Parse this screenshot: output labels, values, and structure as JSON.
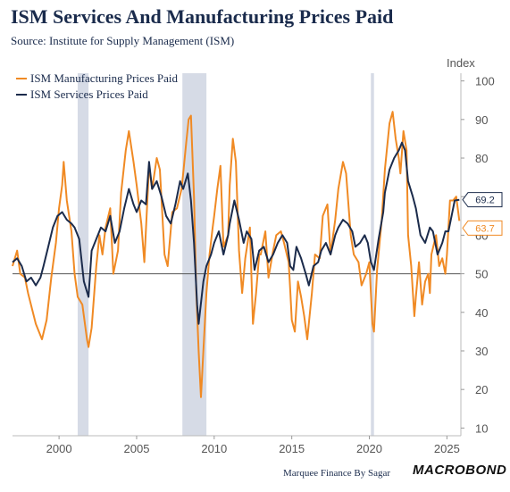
{
  "title": "ISM Services And Manufacturing Prices Paid",
  "subtitle": "Source: Institute for Supply Management (ISM)",
  "footer": "Marquee Finance By Sagar",
  "brand": "MACROBOND",
  "colors": {
    "manufacturing": "#f08a24",
    "services": "#1b2b4b",
    "recession": "#d6dbe6",
    "refline": "#555555"
  },
  "chart_data": {
    "type": "line",
    "title": "ISM Services And Manufacturing Prices Paid",
    "ylabel": "Index",
    "xlim": [
      1997,
      2025.9
    ],
    "ylim": [
      8,
      102
    ],
    "yticks": [
      10,
      20,
      30,
      40,
      50,
      60,
      70,
      80,
      90,
      100
    ],
    "xticks": [
      2000,
      2005,
      2010,
      2015,
      2020,
      2025
    ],
    "reference_line": 50,
    "recessions": [
      [
        2001.2,
        2001.9
      ],
      [
        2007.95,
        2009.5
      ],
      [
        2020.1,
        2020.3
      ]
    ],
    "legend_position": "top-left",
    "series": [
      {
        "name": "ISM Manufacturing Prices Paid",
        "last_value": 63.7,
        "points": [
          [
            1997.0,
            52
          ],
          [
            1997.3,
            56
          ],
          [
            1997.5,
            50
          ],
          [
            1997.8,
            49
          ],
          [
            1998.0,
            45
          ],
          [
            1998.5,
            37
          ],
          [
            1998.9,
            33
          ],
          [
            1999.2,
            38
          ],
          [
            1999.5,
            49
          ],
          [
            1999.8,
            58
          ],
          [
            2000.0,
            67
          ],
          [
            2000.2,
            73
          ],
          [
            2000.3,
            79
          ],
          [
            2000.5,
            69
          ],
          [
            2000.8,
            61
          ],
          [
            2001.0,
            50
          ],
          [
            2001.2,
            44
          ],
          [
            2001.5,
            42
          ],
          [
            2001.8,
            33
          ],
          [
            2001.9,
            31
          ],
          [
            2002.1,
            36
          ],
          [
            2002.4,
            52
          ],
          [
            2002.6,
            60
          ],
          [
            2002.8,
            55
          ],
          [
            2003.0,
            62
          ],
          [
            2003.3,
            67
          ],
          [
            2003.5,
            50
          ],
          [
            2003.8,
            56
          ],
          [
            2004.0,
            71
          ],
          [
            2004.3,
            82
          ],
          [
            2004.5,
            87
          ],
          [
            2004.8,
            79
          ],
          [
            2005.0,
            73
          ],
          [
            2005.3,
            63
          ],
          [
            2005.5,
            53
          ],
          [
            2005.8,
            78
          ],
          [
            2006.0,
            72
          ],
          [
            2006.3,
            80
          ],
          [
            2006.5,
            77
          ],
          [
            2006.8,
            55
          ],
          [
            2007.0,
            52
          ],
          [
            2007.3,
            66
          ],
          [
            2007.6,
            67
          ],
          [
            2007.9,
            72
          ],
          [
            2008.0,
            76
          ],
          [
            2008.2,
            84
          ],
          [
            2008.35,
            90
          ],
          [
            2008.5,
            91
          ],
          [
            2008.7,
            70
          ],
          [
            2008.85,
            45
          ],
          [
            2009.0,
            30
          ],
          [
            2009.15,
            18
          ],
          [
            2009.3,
            30
          ],
          [
            2009.5,
            45
          ],
          [
            2009.7,
            55
          ],
          [
            2009.9,
            62
          ],
          [
            2010.0,
            65
          ],
          [
            2010.2,
            72
          ],
          [
            2010.4,
            78
          ],
          [
            2010.6,
            57
          ],
          [
            2010.9,
            60
          ],
          [
            2011.0,
            73
          ],
          [
            2011.2,
            85
          ],
          [
            2011.4,
            79
          ],
          [
            2011.6,
            56
          ],
          [
            2011.8,
            45
          ],
          [
            2012.0,
            54
          ],
          [
            2012.3,
            62
          ],
          [
            2012.5,
            37
          ],
          [
            2012.7,
            45
          ],
          [
            2012.9,
            55
          ],
          [
            2013.0,
            55
          ],
          [
            2013.3,
            61
          ],
          [
            2013.5,
            49
          ],
          [
            2013.8,
            56
          ],
          [
            2014.0,
            60
          ],
          [
            2014.3,
            61
          ],
          [
            2014.5,
            58
          ],
          [
            2014.8,
            53
          ],
          [
            2014.9,
            46
          ],
          [
            2015.0,
            38
          ],
          [
            2015.2,
            35
          ],
          [
            2015.4,
            48
          ],
          [
            2015.6,
            44
          ],
          [
            2015.8,
            39
          ],
          [
            2016.0,
            33
          ],
          [
            2016.3,
            45
          ],
          [
            2016.5,
            55
          ],
          [
            2016.8,
            54
          ],
          [
            2017.0,
            65
          ],
          [
            2017.3,
            68
          ],
          [
            2017.5,
            55
          ],
          [
            2017.8,
            64
          ],
          [
            2018.0,
            72
          ],
          [
            2018.3,
            79
          ],
          [
            2018.5,
            76
          ],
          [
            2018.8,
            60
          ],
          [
            2019.0,
            55
          ],
          [
            2019.3,
            53
          ],
          [
            2019.5,
            47
          ],
          [
            2019.8,
            50
          ],
          [
            2020.0,
            53
          ],
          [
            2020.2,
            37
          ],
          [
            2020.3,
            35
          ],
          [
            2020.5,
            51
          ],
          [
            2020.8,
            64
          ],
          [
            2021.0,
            77
          ],
          [
            2021.3,
            89
          ],
          [
            2021.5,
            92
          ],
          [
            2021.7,
            85
          ],
          [
            2021.9,
            80
          ],
          [
            2022.0,
            76
          ],
          [
            2022.2,
            87
          ],
          [
            2022.4,
            82
          ],
          [
            2022.5,
            60
          ],
          [
            2022.7,
            52
          ],
          [
            2022.9,
            39
          ],
          [
            2023.0,
            44
          ],
          [
            2023.2,
            53
          ],
          [
            2023.4,
            42
          ],
          [
            2023.6,
            48
          ],
          [
            2023.8,
            50
          ],
          [
            2023.9,
            45
          ],
          [
            2024.0,
            55
          ],
          [
            2024.3,
            60
          ],
          [
            2024.5,
            52
          ],
          [
            2024.7,
            54
          ],
          [
            2024.9,
            50
          ],
          [
            2025.0,
            55
          ],
          [
            2025.2,
            69
          ],
          [
            2025.4,
            69
          ],
          [
            2025.6,
            70
          ],
          [
            2025.8,
            63.7
          ]
        ]
      },
      {
        "name": "ISM Services Prices Paid",
        "last_value": 69.2,
        "points": [
          [
            1997.0,
            53
          ],
          [
            1997.3,
            54
          ],
          [
            1997.6,
            52
          ],
          [
            1997.9,
            48
          ],
          [
            1998.2,
            49
          ],
          [
            1998.5,
            47
          ],
          [
            1998.8,
            49
          ],
          [
            1999.0,
            52
          ],
          [
            1999.3,
            57
          ],
          [
            1999.6,
            62
          ],
          [
            1999.9,
            65
          ],
          [
            2000.2,
            66
          ],
          [
            2000.5,
            64
          ],
          [
            2000.8,
            63
          ],
          [
            2001.0,
            62
          ],
          [
            2001.3,
            59
          ],
          [
            2001.6,
            48
          ],
          [
            2001.9,
            44
          ],
          [
            2002.1,
            56
          ],
          [
            2002.4,
            59
          ],
          [
            2002.7,
            62
          ],
          [
            2003.0,
            61
          ],
          [
            2003.3,
            65
          ],
          [
            2003.6,
            58
          ],
          [
            2003.9,
            61
          ],
          [
            2004.2,
            67
          ],
          [
            2004.5,
            72
          ],
          [
            2004.8,
            68
          ],
          [
            2005.0,
            66
          ],
          [
            2005.3,
            69
          ],
          [
            2005.6,
            68
          ],
          [
            2005.8,
            79
          ],
          [
            2006.0,
            72
          ],
          [
            2006.3,
            74
          ],
          [
            2006.6,
            70
          ],
          [
            2006.9,
            65
          ],
          [
            2007.2,
            63
          ],
          [
            2007.5,
            68
          ],
          [
            2007.8,
            74
          ],
          [
            2008.0,
            72
          ],
          [
            2008.3,
            76
          ],
          [
            2008.5,
            69
          ],
          [
            2008.7,
            58
          ],
          [
            2008.9,
            42
          ],
          [
            2009.0,
            37
          ],
          [
            2009.3,
            48
          ],
          [
            2009.5,
            52
          ],
          [
            2009.8,
            55
          ],
          [
            2010.0,
            58
          ],
          [
            2010.3,
            61
          ],
          [
            2010.6,
            55
          ],
          [
            2010.9,
            60
          ],
          [
            2011.0,
            63
          ],
          [
            2011.3,
            69
          ],
          [
            2011.6,
            64
          ],
          [
            2011.9,
            58
          ],
          [
            2012.1,
            61
          ],
          [
            2012.4,
            59
          ],
          [
            2012.6,
            51
          ],
          [
            2012.9,
            56
          ],
          [
            2013.2,
            57
          ],
          [
            2013.5,
            53
          ],
          [
            2013.8,
            55
          ],
          [
            2014.1,
            58
          ],
          [
            2014.4,
            60
          ],
          [
            2014.7,
            58
          ],
          [
            2014.9,
            52
          ],
          [
            2015.1,
            51
          ],
          [
            2015.3,
            57
          ],
          [
            2015.6,
            54
          ],
          [
            2015.9,
            50
          ],
          [
            2016.1,
            47
          ],
          [
            2016.4,
            52
          ],
          [
            2016.7,
            53
          ],
          [
            2016.9,
            56
          ],
          [
            2017.2,
            58
          ],
          [
            2017.5,
            55
          ],
          [
            2017.8,
            60
          ],
          [
            2018.0,
            62
          ],
          [
            2018.3,
            64
          ],
          [
            2018.6,
            63
          ],
          [
            2018.9,
            61
          ],
          [
            2019.1,
            57
          ],
          [
            2019.4,
            58
          ],
          [
            2019.7,
            60
          ],
          [
            2019.9,
            58
          ],
          [
            2020.1,
            53
          ],
          [
            2020.3,
            51
          ],
          [
            2020.6,
            59
          ],
          [
            2020.9,
            66
          ],
          [
            2021.0,
            71
          ],
          [
            2021.3,
            77
          ],
          [
            2021.6,
            80
          ],
          [
            2021.9,
            82
          ],
          [
            2022.1,
            84
          ],
          [
            2022.3,
            82
          ],
          [
            2022.5,
            74
          ],
          [
            2022.8,
            70
          ],
          [
            2023.0,
            67
          ],
          [
            2023.3,
            60
          ],
          [
            2023.6,
            58
          ],
          [
            2023.9,
            62
          ],
          [
            2024.1,
            61
          ],
          [
            2024.4,
            55
          ],
          [
            2024.7,
            58
          ],
          [
            2024.9,
            61
          ],
          [
            2025.1,
            61
          ],
          [
            2025.3,
            65
          ],
          [
            2025.5,
            69
          ],
          [
            2025.8,
            69.2
          ]
        ]
      }
    ]
  }
}
